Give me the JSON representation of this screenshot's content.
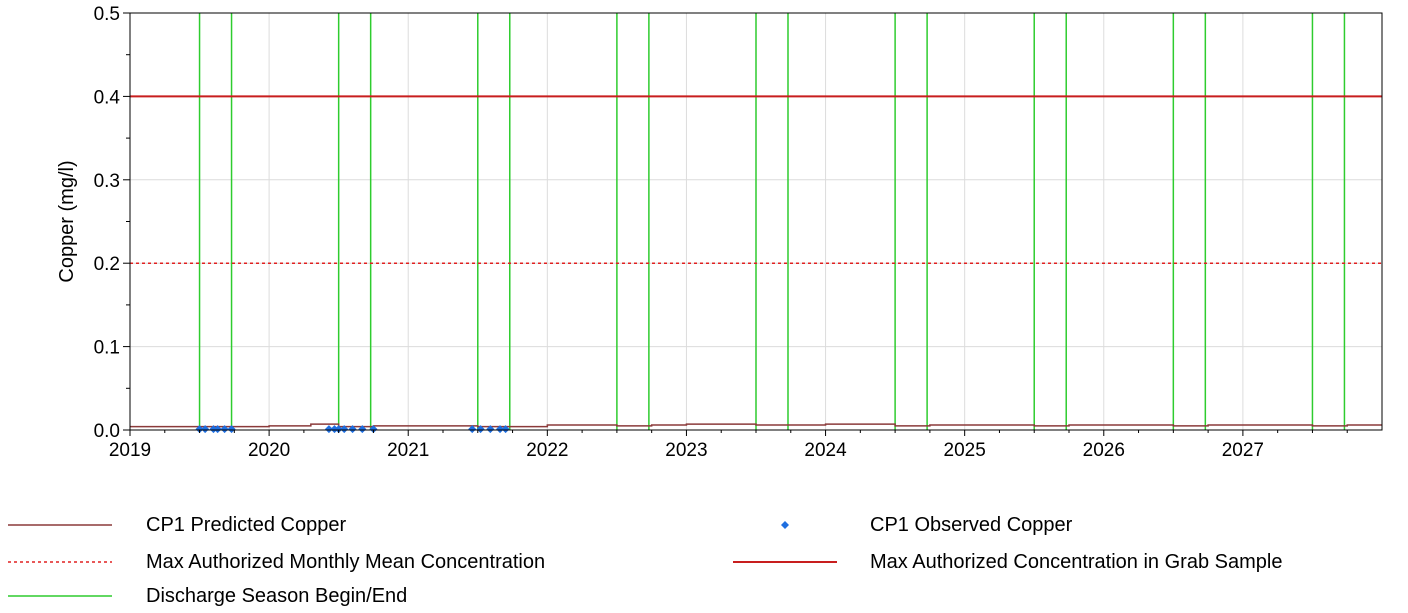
{
  "chart_data": {
    "type": "line",
    "title": "",
    "xlabel": "",
    "ylabel": "Copper (mg/l)",
    "xlim": [
      2019.0,
      2028.0
    ],
    "ylim": [
      0.0,
      0.5
    ],
    "x_ticks": [
      "2019",
      "2020",
      "2021",
      "2022",
      "2023",
      "2024",
      "2025",
      "2026",
      "2027"
    ],
    "y_ticks": [
      "0.0",
      "0.1",
      "0.2",
      "0.3",
      "0.4",
      "0.5"
    ],
    "grid": true,
    "legend_position": "bottom",
    "series": [
      {
        "name": "CP1 Predicted Copper",
        "style": "line",
        "color": "#8B3A3A",
        "x": [
          2019.0,
          2019.5,
          2019.75,
          2020.0,
          2020.3,
          2020.5,
          2020.75,
          2021.0,
          2021.5,
          2021.75,
          2022.0,
          2022.5,
          2022.75,
          2023.0,
          2023.5,
          2023.75,
          2024.0,
          2024.5,
          2024.75,
          2025.0,
          2025.5,
          2025.75,
          2026.0,
          2026.5,
          2026.75,
          2027.0,
          2027.5,
          2027.75,
          2028.0
        ],
        "y": [
          0.004,
          0.004,
          0.004,
          0.005,
          0.007,
          0.004,
          0.005,
          0.005,
          0.004,
          0.004,
          0.006,
          0.005,
          0.006,
          0.007,
          0.006,
          0.006,
          0.007,
          0.005,
          0.006,
          0.006,
          0.005,
          0.006,
          0.006,
          0.005,
          0.006,
          0.006,
          0.005,
          0.006,
          0.006
        ]
      },
      {
        "name": "CP1 Observed  Copper",
        "style": "markers",
        "color": "#1F6FE0",
        "x": [
          2019.5,
          2019.54,
          2019.6,
          2019.63,
          2019.68,
          2019.73,
          2020.43,
          2020.47,
          2020.5,
          2020.54,
          2020.6,
          2020.67,
          2020.75,
          2021.46,
          2021.52,
          2021.59,
          2021.66,
          2021.7
        ],
        "y": [
          0.001,
          0.001,
          0.001,
          0.001,
          0.001,
          0.001,
          0.001,
          0.001,
          0.001,
          0.001,
          0.001,
          0.001,
          0.001,
          0.001,
          0.001,
          0.001,
          0.001,
          0.001
        ]
      },
      {
        "name": "Max Authorized Monthly Mean Concentration",
        "style": "dashed",
        "color": "#E02020",
        "x": [
          2019.0,
          2028.0
        ],
        "y": [
          0.2,
          0.2
        ]
      },
      {
        "name": "Max Authorized Concentration in Grab Sample",
        "style": "line",
        "color": "#C81E1E",
        "x": [
          2019.0,
          2028.0
        ],
        "y": [
          0.4,
          0.4
        ]
      },
      {
        "name": "Discharge Season Begin/End",
        "style": "vertical-lines",
        "color": "#2ECC2E",
        "x": [
          2019.5,
          2019.73,
          2020.5,
          2020.73,
          2021.5,
          2021.73,
          2022.5,
          2022.73,
          2023.5,
          2023.73,
          2024.5,
          2024.73,
          2025.5,
          2025.73,
          2026.5,
          2026.73,
          2027.5,
          2027.73
        ]
      }
    ]
  }
}
